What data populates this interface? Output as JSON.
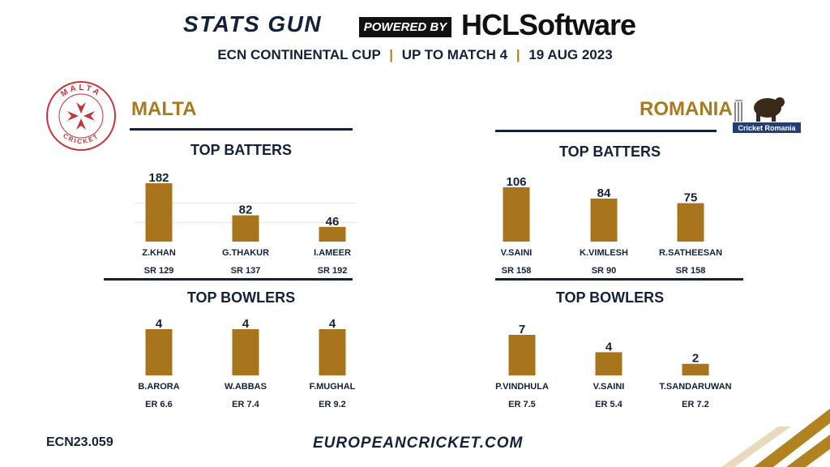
{
  "header": {
    "brand": "STATS GUN",
    "powered": "POWERED BY",
    "sponsor": "HCLSoftware",
    "competition": "ECN CONTINENTAL CUP",
    "stage": "UP TO MATCH 4",
    "date": "19 AUG 2023",
    "separator": "|"
  },
  "malta": {
    "name": "MALTA",
    "logo_text_top": "MALTA",
    "logo_text_bottom": "CRICKET"
  },
  "romania": {
    "name": "ROMANIA",
    "logo_text": "Cricket Romania"
  },
  "sections": {
    "top_batters": "TOP BATTERS",
    "top_bowlers": "TOP BOWLERS"
  },
  "chart_data": [
    {
      "type": "bar",
      "title": "TOP BATTERS",
      "team": "MALTA",
      "categories": [
        "Z.KHAN",
        "G.THAKUR",
        "I.AMEER"
      ],
      "values": [
        182,
        82,
        46
      ],
      "secondary_labels": [
        "SR 129",
        "SR 137",
        "SR 192"
      ],
      "ylim": [
        0,
        182
      ],
      "grid": true
    },
    {
      "type": "bar",
      "title": "TOP BOWLERS",
      "team": "MALTA",
      "categories": [
        "B.ARORA",
        "W.ABBAS",
        "F.MUGHAL"
      ],
      "values": [
        4,
        4,
        4
      ],
      "secondary_labels": [
        "ER 6.6",
        "ER 7.4",
        "ER 9.2"
      ],
      "ylim": [
        0,
        4
      ],
      "grid": false
    },
    {
      "type": "bar",
      "title": "TOP BATTERS",
      "team": "ROMANIA",
      "categories": [
        "V.SAINI",
        "K.VIMLESH",
        "R.SATHEESAN"
      ],
      "values": [
        106,
        84,
        75
      ],
      "secondary_labels": [
        "SR 158",
        "SR 90",
        "SR 158"
      ],
      "ylim": [
        0,
        106
      ],
      "grid": false
    },
    {
      "type": "bar",
      "title": "TOP BOWLERS",
      "team": "ROMANIA",
      "categories": [
        "P.VINDHULA",
        "V.SAINI",
        "T.SANDARUWAN"
      ],
      "values": [
        7,
        4,
        2
      ],
      "secondary_labels": [
        "ER 7.5",
        "ER 5.4",
        "ER 7.2"
      ],
      "ylim": [
        0,
        7
      ],
      "grid": false
    }
  ],
  "footer": {
    "code": "ECN23.059",
    "url": "EUROPEANCRICKET.COM"
  },
  "colors": {
    "bar": "#a8741c",
    "navy": "#14213a",
    "gold": "#a87a1c"
  }
}
